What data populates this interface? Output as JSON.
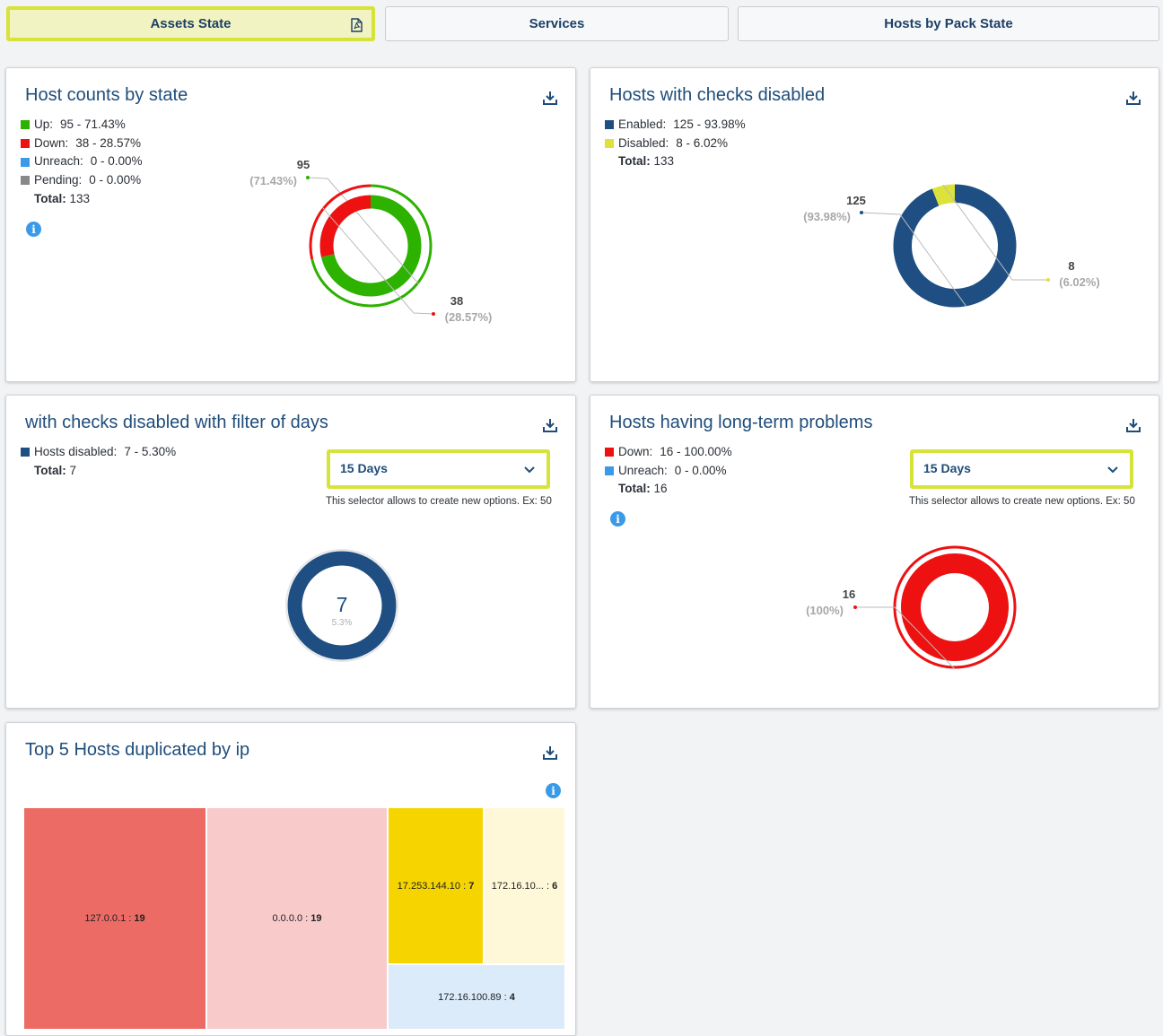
{
  "tabs": [
    {
      "label": "Assets State",
      "active": true
    },
    {
      "label": "Services",
      "active": false
    },
    {
      "label": "Hosts by Pack State",
      "active": false
    }
  ],
  "colors": {
    "up": "#2db200",
    "down": "#ee1111",
    "unreach": "#3b9ae8",
    "pending": "#888888",
    "enabled": "#1f4f82",
    "disabled": "#dde23a",
    "title": "#1f4d7a"
  },
  "card1": {
    "title": "Host counts by state",
    "legend": [
      {
        "label": "Up:",
        "value": "95 - 71.43%",
        "color": "#2db200"
      },
      {
        "label": "Down:",
        "value": "38 - 28.57%",
        "color": "#ee1111"
      },
      {
        "label": "Unreach:",
        "value": "0 - 0.00%",
        "color": "#3b9ae8"
      },
      {
        "label": "Pending:",
        "value": "0 - 0.00%",
        "color": "#888888"
      }
    ],
    "total_label": "Total:",
    "total_value": "133",
    "chart": {
      "slices": [
        {
          "name": "Up",
          "value": 95,
          "label": "95",
          "pct": "(71.43%)",
          "color": "#2db200"
        },
        {
          "name": "Down",
          "value": 38,
          "label": "38",
          "pct": "(28.57%)",
          "color": "#ee1111"
        }
      ]
    }
  },
  "card2": {
    "title": "Hosts with checks disabled",
    "legend": [
      {
        "label": "Enabled:",
        "value": "125 - 93.98%",
        "color": "#1f4f82"
      },
      {
        "label": "Disabled:",
        "value": "8 - 6.02%",
        "color": "#dde23a"
      }
    ],
    "total_label": "Total:",
    "total_value": "133",
    "chart": {
      "slices": [
        {
          "name": "Enabled",
          "value": 125,
          "label": "125",
          "pct": "(93.98%)",
          "color": "#1f4f82"
        },
        {
          "name": "Disabled",
          "value": 8,
          "label": "8",
          "pct": "(6.02%)",
          "color": "#dde23a"
        }
      ]
    }
  },
  "card3": {
    "title": "with checks disabled with filter of days",
    "legend": [
      {
        "label": "Hosts disabled:",
        "value": "7 - 5.30%",
        "color": "#1f4f82"
      }
    ],
    "total_label": "Total:",
    "total_value": "7",
    "select_value": "15 Days",
    "hint": "This selector allows to create new options. Ex: 50",
    "gauge": {
      "value": "7",
      "pct": "5.3%"
    }
  },
  "card4": {
    "title": "Hosts having long-term problems",
    "legend": [
      {
        "label": "Down:",
        "value": "16 - 100.00%",
        "color": "#ee1111"
      },
      {
        "label": "Unreach:",
        "value": "0 - 0.00%",
        "color": "#3b9ae8"
      }
    ],
    "total_label": "Total:",
    "total_value": "16",
    "select_value": "15 Days",
    "hint": "This selector allows to create new options. Ex: 50",
    "chart": {
      "slices": [
        {
          "name": "Down",
          "value": 16,
          "label": "16",
          "pct": "(100%)",
          "color": "#ee1111"
        }
      ]
    }
  },
  "card5": {
    "title": "Top 5 Hosts duplicated by ip",
    "treemap": [
      {
        "ip": "127.0.0.1",
        "count": "19",
        "color": "#ec6b65"
      },
      {
        "ip": "0.0.0.0",
        "count": "19",
        "color": "#f9caca"
      },
      {
        "ip": "17.253.144.10",
        "count": "7",
        "color": "#f5d400"
      },
      {
        "ip": "172.16.10...",
        "count": "6",
        "color": "#fff8d8"
      },
      {
        "ip": "172.16.100.89",
        "count": "4",
        "color": "#dbebfa"
      }
    ]
  }
}
